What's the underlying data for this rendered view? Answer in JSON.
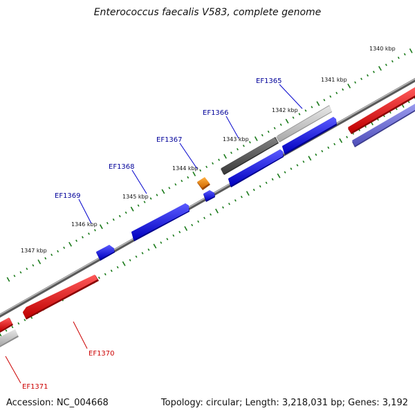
{
  "title": "Enterococcus faecalis V583, complete genome",
  "footer": {
    "accession": "Accession: NC_004668",
    "summary": "Topology: circular; Length: 3,218,031 bp; Genes: 3,192"
  },
  "colors": {
    "backbone": "#8a8a8a",
    "tick": "#1a7a1a",
    "forward_gene": "#1010ee",
    "reverse_gene": "#ee1010",
    "pseudo_gene": "#7777dd",
    "hypothetical_light": "#c8c8c8",
    "hypothetical_dark": "#555555",
    "rna_gene": "#ee8800",
    "label_forward": "#000099",
    "label_reverse": "#cc0000"
  },
  "scale": {
    "unit": "kbp",
    "tick_labels": [
      "1340 kbp",
      "1341 kbp",
      "1342 kbp",
      "1343 kbp",
      "1344 kbp",
      "1345 kbp",
      "1346 kbp",
      "1347 kbp"
    ]
  },
  "genes": [
    {
      "id": "EF1365",
      "strand": "forward"
    },
    {
      "id": "EF1366",
      "strand": "forward"
    },
    {
      "id": "EF1367",
      "strand": "forward"
    },
    {
      "id": "EF1368",
      "strand": "forward"
    },
    {
      "id": "EF1369",
      "strand": "forward"
    },
    {
      "id": "EF1370",
      "strand": "reverse"
    },
    {
      "id": "EF1371",
      "strand": "reverse"
    }
  ]
}
